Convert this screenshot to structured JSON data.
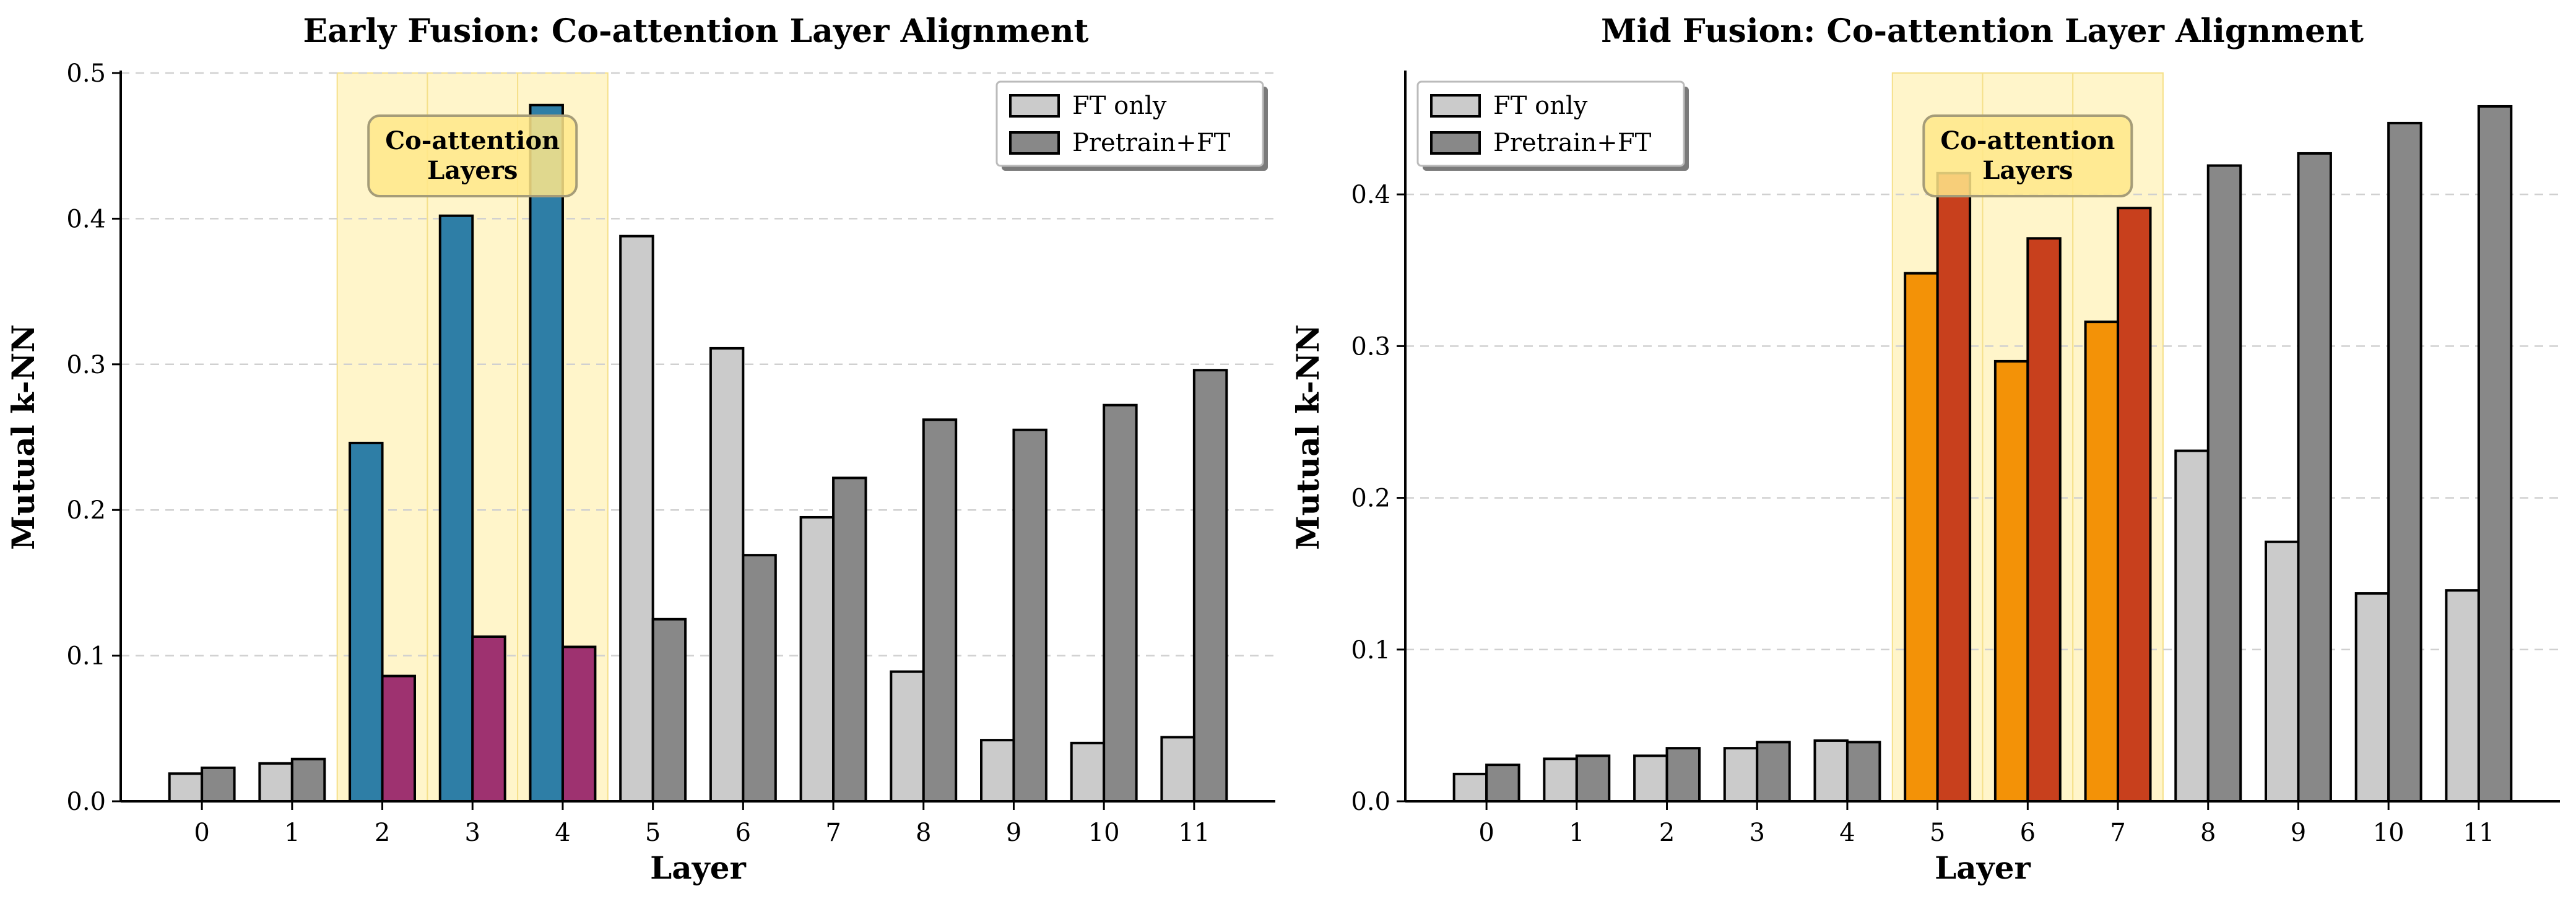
{
  "chart_data": [
    {
      "type": "bar",
      "title": "Early Fusion: Co-attention Layer Alignment",
      "xlabel": "Layer",
      "ylabel": "Mutual k-NN",
      "categories": [
        "0",
        "1",
        "2",
        "3",
        "4",
        "5",
        "6",
        "7",
        "8",
        "9",
        "10",
        "11"
      ],
      "ylim": [
        0,
        0.5
      ],
      "yticks": [
        "0.0",
        "0.1",
        "0.2",
        "0.3",
        "0.4",
        "0.5"
      ],
      "grid": "horizontal dashed",
      "legend_position": "top-right",
      "series": [
        {
          "name": "FT only",
          "values": [
            0.019,
            0.026,
            0.246,
            0.402,
            0.478,
            0.388,
            0.311,
            0.195,
            0.089,
            0.042,
            0.04,
            0.044
          ]
        },
        {
          "name": "Pretrain+FT",
          "values": [
            0.023,
            0.029,
            0.086,
            0.113,
            0.106,
            0.125,
            0.169,
            0.222,
            0.262,
            0.255,
            0.272,
            0.296
          ]
        }
      ],
      "highlight": {
        "layers": [
          2,
          3,
          4
        ],
        "label": "Co-attention\nLayers"
      },
      "colors": {
        "ft_normal": "#cbcbcb",
        "pre_normal": "#888888",
        "ft_highlight": "#2e7ea6",
        "pre_highlight": "#9e3270",
        "band": "#fff1b3",
        "label_box": "#ffe88a"
      }
    },
    {
      "type": "bar",
      "title": "Mid Fusion: Co-attention Layer Alignment",
      "xlabel": "Layer",
      "ylabel": "Mutual k-NN",
      "categories": [
        "0",
        "1",
        "2",
        "3",
        "4",
        "5",
        "6",
        "7",
        "8",
        "9",
        "10",
        "11"
      ],
      "ylim": [
        0,
        0.48
      ],
      "yticks": [
        "0.0",
        "0.1",
        "0.2",
        "0.3",
        "0.4"
      ],
      "grid": "horizontal dashed",
      "legend_position": "top-left",
      "series": [
        {
          "name": "FT only",
          "values": [
            0.018,
            0.028,
            0.03,
            0.035,
            0.04,
            0.348,
            0.29,
            0.316,
            0.231,
            0.171,
            0.137,
            0.139
          ]
        },
        {
          "name": "Pretrain+FT",
          "values": [
            0.024,
            0.03,
            0.035,
            0.039,
            0.039,
            0.414,
            0.371,
            0.391,
            0.419,
            0.427,
            0.447,
            0.458
          ]
        }
      ],
      "highlight": {
        "layers": [
          5,
          6,
          7
        ],
        "label": "Co-attention\nLayers"
      },
      "colors": {
        "ft_normal": "#cbcbcb",
        "pre_normal": "#888888",
        "ft_highlight": "#f39207",
        "pre_highlight": "#c8401d",
        "band": "#fff1b3",
        "label_box": "#ffe88a"
      }
    }
  ]
}
